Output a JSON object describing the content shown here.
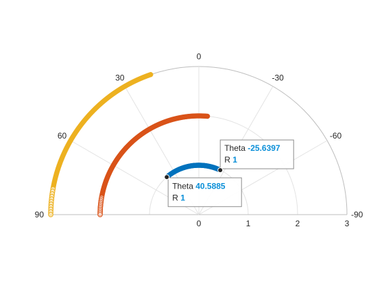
{
  "chart_data": {
    "type": "scatter",
    "coordinate_system": "polar",
    "theta_direction": "clockwise",
    "theta_zero": "top",
    "theta_limits_deg": [
      -90,
      90
    ],
    "r_limits": [
      0,
      3
    ],
    "theta_ticks": [
      "90",
      "60",
      "30",
      "0",
      "-30",
      "-60",
      "-90"
    ],
    "theta_tick_values": [
      90,
      60,
      30,
      0,
      -30,
      -60,
      -90
    ],
    "r_ticks": [
      "0",
      "1",
      "2",
      "3"
    ],
    "r_tick_values": [
      0,
      1,
      2,
      3
    ],
    "grid": true,
    "series": [
      {
        "r": 1,
        "theta_range_deg": [
          -25.6397,
          40.5885
        ],
        "color": "#0072BD"
      },
      {
        "r": 2,
        "theta_range_deg": [
          -5,
          90
        ],
        "color": "#D95319"
      },
      {
        "r": 3,
        "theta_range_deg": [
          19,
          90
        ],
        "color": "#EDB120"
      }
    ],
    "datatips": [
      {
        "theta_label": "Theta",
        "theta_value": "-25.6397",
        "r_label": "R",
        "r_value": "1",
        "theta": -25.6397,
        "r": 1
      },
      {
        "theta_label": "Theta",
        "theta_value": "40.5885",
        "r_label": "R",
        "r_value": "1",
        "theta": 40.5885,
        "r": 1
      }
    ]
  }
}
